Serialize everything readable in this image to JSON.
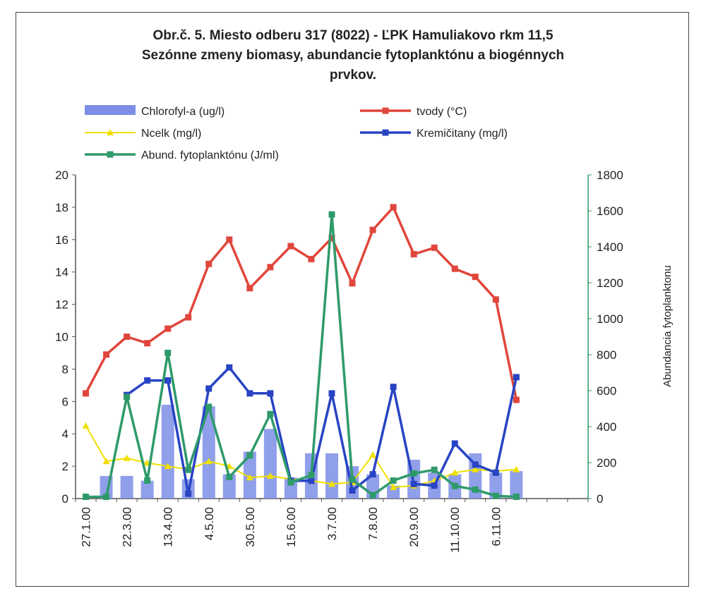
{
  "chart_data": {
    "type": "bar",
    "title_lines": [
      "Obr.č. 5. Miesto odberu 317 (8022) - ĽPK Hamuliakovo rkm 11,5",
      "Sezónne zmeny biomasy, abundancie fytoplanktónu a biogénnych",
      "prvkov."
    ],
    "x_tick_labels": [
      "27.1.00",
      "22.3.00",
      "13.4.00",
      "4.5.00",
      "30.5.00",
      "15.6.00",
      "3.7.00",
      "7.8.00",
      "20.9.00",
      "11.10.00",
      "6.11.00"
    ],
    "left_axis": {
      "min": 0,
      "max": 20,
      "step": 2,
      "ticks": [
        "0",
        "2",
        "4",
        "6",
        "8",
        "10",
        "12",
        "14",
        "16",
        "18",
        "20"
      ]
    },
    "right_axis": {
      "min": 0,
      "max": 1800,
      "step": 200,
      "ticks": [
        "0",
        "200",
        "400",
        "600",
        "800",
        "1000",
        "1200",
        "1400",
        "1600",
        "1800"
      ],
      "label": "Abundancia fytoplanktonu"
    },
    "n_points": 25,
    "series": [
      {
        "name": "Chlorofyl-a (ug/l)",
        "kind": "bar",
        "axis": "left",
        "color": "#7d8ee6",
        "values": [
          0,
          1.4,
          1.4,
          1.1,
          5.8,
          1.2,
          5.7,
          1.5,
          2.9,
          4.3,
          1.3,
          2.8,
          2.8,
          2.0,
          1.5,
          0.8,
          2.4,
          1.6,
          1.5,
          2.8,
          1.6,
          1.7,
          null,
          null,
          null
        ]
      },
      {
        "name": "tvody (°C)",
        "kind": "line",
        "axis": "left",
        "color": "#e0463c",
        "marker": "square",
        "values": [
          6.5,
          8.9,
          10.0,
          9.6,
          10.5,
          11.2,
          14.5,
          16.0,
          13.0,
          14.3,
          15.6,
          14.8,
          16.1,
          13.3,
          16.6,
          18.0,
          15.1,
          15.5,
          14.2,
          13.7,
          12.3,
          6.1,
          null,
          null,
          null
        ]
      },
      {
        "name": "Ncelk (mg/l)",
        "kind": "line",
        "axis": "left",
        "color": "#f0e000",
        "marker": "triangle",
        "values": [
          4.5,
          2.3,
          2.5,
          2.2,
          2.0,
          1.8,
          2.3,
          2.0,
          1.3,
          1.4,
          1.2,
          1.1,
          0.9,
          1.0,
          2.7,
          0.7,
          0.8,
          1.1,
          1.6,
          1.8,
          1.7,
          1.8,
          null,
          null,
          null
        ]
      },
      {
        "name": "Kremičitany (mg/l)",
        "kind": "line",
        "axis": "left",
        "color": "#2844c4",
        "marker": "square",
        "values": [
          null,
          null,
          6.4,
          7.3,
          7.3,
          0.3,
          6.8,
          8.1,
          6.5,
          6.5,
          1.1,
          1.1,
          6.5,
          0.5,
          1.5,
          6.9,
          0.9,
          0.8,
          3.4,
          2.1,
          1.6,
          7.5,
          null,
          null,
          null
        ]
      },
      {
        "name": "Abund. fytoplanktónu (J/ml)",
        "kind": "line",
        "axis": "right",
        "color": "#2e9a6a",
        "marker": "square",
        "values": [
          10,
          10,
          565,
          100,
          810,
          160,
          510,
          120,
          240,
          470,
          90,
          130,
          1580,
          105,
          20,
          100,
          140,
          160,
          70,
          50,
          15,
          10,
          null,
          null,
          null
        ]
      }
    ]
  }
}
